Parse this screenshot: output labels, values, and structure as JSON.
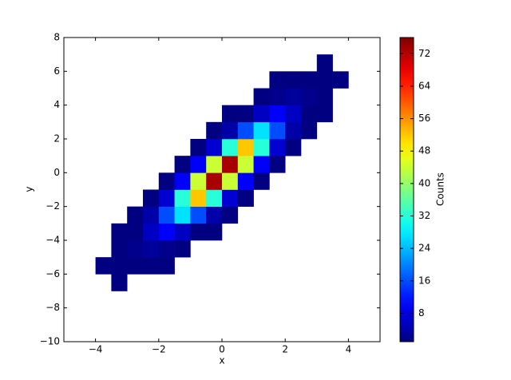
{
  "chart_data": {
    "type": "hist2d",
    "colormap": "jet",
    "xlabel": "x",
    "ylabel": "y",
    "colorbar_label": "Counts",
    "xlim": [
      -5,
      5
    ],
    "ylim": [
      -10,
      8
    ],
    "xticks": [
      {
        "value": -4,
        "label": "−4"
      },
      {
        "value": -2,
        "label": "−2"
      },
      0,
      2,
      4
    ],
    "yticks": [
      {
        "value": -10,
        "label": "−10"
      },
      {
        "value": -8,
        "label": "−8"
      },
      {
        "value": -6,
        "label": "−6"
      },
      {
        "value": -4,
        "label": "−4"
      },
      {
        "value": -2,
        "label": "−2"
      },
      0,
      2,
      4,
      6,
      8
    ],
    "clim": [
      1,
      76
    ],
    "cticks": [
      8,
      16,
      24,
      32,
      40,
      48,
      56,
      64,
      72
    ],
    "xbins": [
      -5,
      -4.5,
      -4,
      -3.5,
      -3,
      -2.5,
      -2,
      -1.5,
      -1,
      -0.5,
      0,
      0.5,
      1,
      1.5,
      2,
      2.5,
      3,
      3.5,
      4,
      4.5,
      5
    ],
    "ybins": [
      -10,
      -9,
      -8,
      -7,
      -6,
      -5,
      -4,
      -3,
      -2,
      -1,
      0,
      1,
      2,
      3,
      4,
      5,
      6,
      7,
      8
    ],
    "counts": [
      [
        null,
        null,
        null,
        null,
        null,
        null,
        null,
        null,
        null,
        null,
        null,
        null,
        null,
        null,
        null,
        null,
        null,
        null,
        null,
        null
      ],
      [
        null,
        null,
        null,
        null,
        null,
        null,
        null,
        null,
        null,
        null,
        null,
        null,
        null,
        null,
        null,
        null,
        null,
        null,
        null,
        null
      ],
      [
        null,
        null,
        null,
        null,
        null,
        null,
        null,
        null,
        null,
        null,
        null,
        null,
        null,
        null,
        null,
        null,
        null,
        null,
        null,
        null
      ],
      [
        null,
        null,
        null,
        1,
        null,
        null,
        null,
        null,
        null,
        null,
        null,
        null,
        null,
        null,
        null,
        null,
        null,
        null,
        null,
        null
      ],
      [
        null,
        null,
        1,
        1,
        1,
        1,
        1,
        null,
        null,
        null,
        null,
        null,
        null,
        null,
        null,
        null,
        null,
        null,
        null,
        null
      ],
      [
        null,
        null,
        null,
        1,
        2,
        3,
        2,
        1,
        null,
        null,
        null,
        null,
        null,
        null,
        null,
        null,
        null,
        null,
        null,
        null
      ],
      [
        null,
        null,
        null,
        1,
        1,
        6,
        10,
        6,
        1,
        1,
        null,
        null,
        null,
        null,
        null,
        null,
        null,
        null,
        null,
        null
      ],
      [
        null,
        null,
        null,
        null,
        1,
        4,
        16,
        27,
        16,
        4,
        1,
        null,
        null,
        null,
        null,
        null,
        null,
        null,
        null,
        null
      ],
      [
        null,
        null,
        null,
        null,
        null,
        1,
        7,
        32,
        52,
        32,
        7,
        1,
        null,
        null,
        null,
        null,
        null,
        null,
        null,
        null
      ],
      [
        null,
        null,
        null,
        null,
        null,
        null,
        1,
        10,
        44,
        73,
        44,
        10,
        1,
        null,
        null,
        null,
        null,
        null,
        null,
        null
      ],
      [
        null,
        null,
        null,
        null,
        null,
        null,
        null,
        1,
        10,
        44,
        73,
        44,
        10,
        1,
        null,
        null,
        null,
        null,
        null,
        null
      ],
      [
        null,
        null,
        null,
        null,
        null,
        null,
        null,
        null,
        1,
        7,
        32,
        52,
        32,
        7,
        1,
        null,
        null,
        null,
        null,
        null
      ],
      [
        null,
        null,
        null,
        null,
        null,
        null,
        null,
        null,
        null,
        1,
        4,
        16,
        27,
        16,
        4,
        1,
        null,
        null,
        null,
        null
      ],
      [
        null,
        null,
        null,
        null,
        null,
        null,
        null,
        null,
        null,
        null,
        1,
        1,
        6,
        10,
        6,
        1,
        1,
        null,
        null,
        null
      ],
      [
        null,
        null,
        null,
        null,
        null,
        null,
        null,
        null,
        null,
        null,
        null,
        null,
        1,
        2,
        3,
        2,
        1,
        null,
        null,
        null
      ],
      [
        null,
        null,
        null,
        null,
        null,
        null,
        null,
        null,
        null,
        null,
        null,
        null,
        null,
        1,
        1,
        1,
        1,
        1,
        null,
        null
      ],
      [
        null,
        null,
        null,
        null,
        null,
        null,
        null,
        null,
        null,
        null,
        null,
        null,
        null,
        null,
        null,
        null,
        1,
        null,
        null,
        null
      ],
      [
        null,
        null,
        null,
        null,
        null,
        null,
        null,
        null,
        null,
        null,
        null,
        null,
        null,
        null,
        null,
        null,
        null,
        null,
        null,
        null
      ]
    ]
  }
}
